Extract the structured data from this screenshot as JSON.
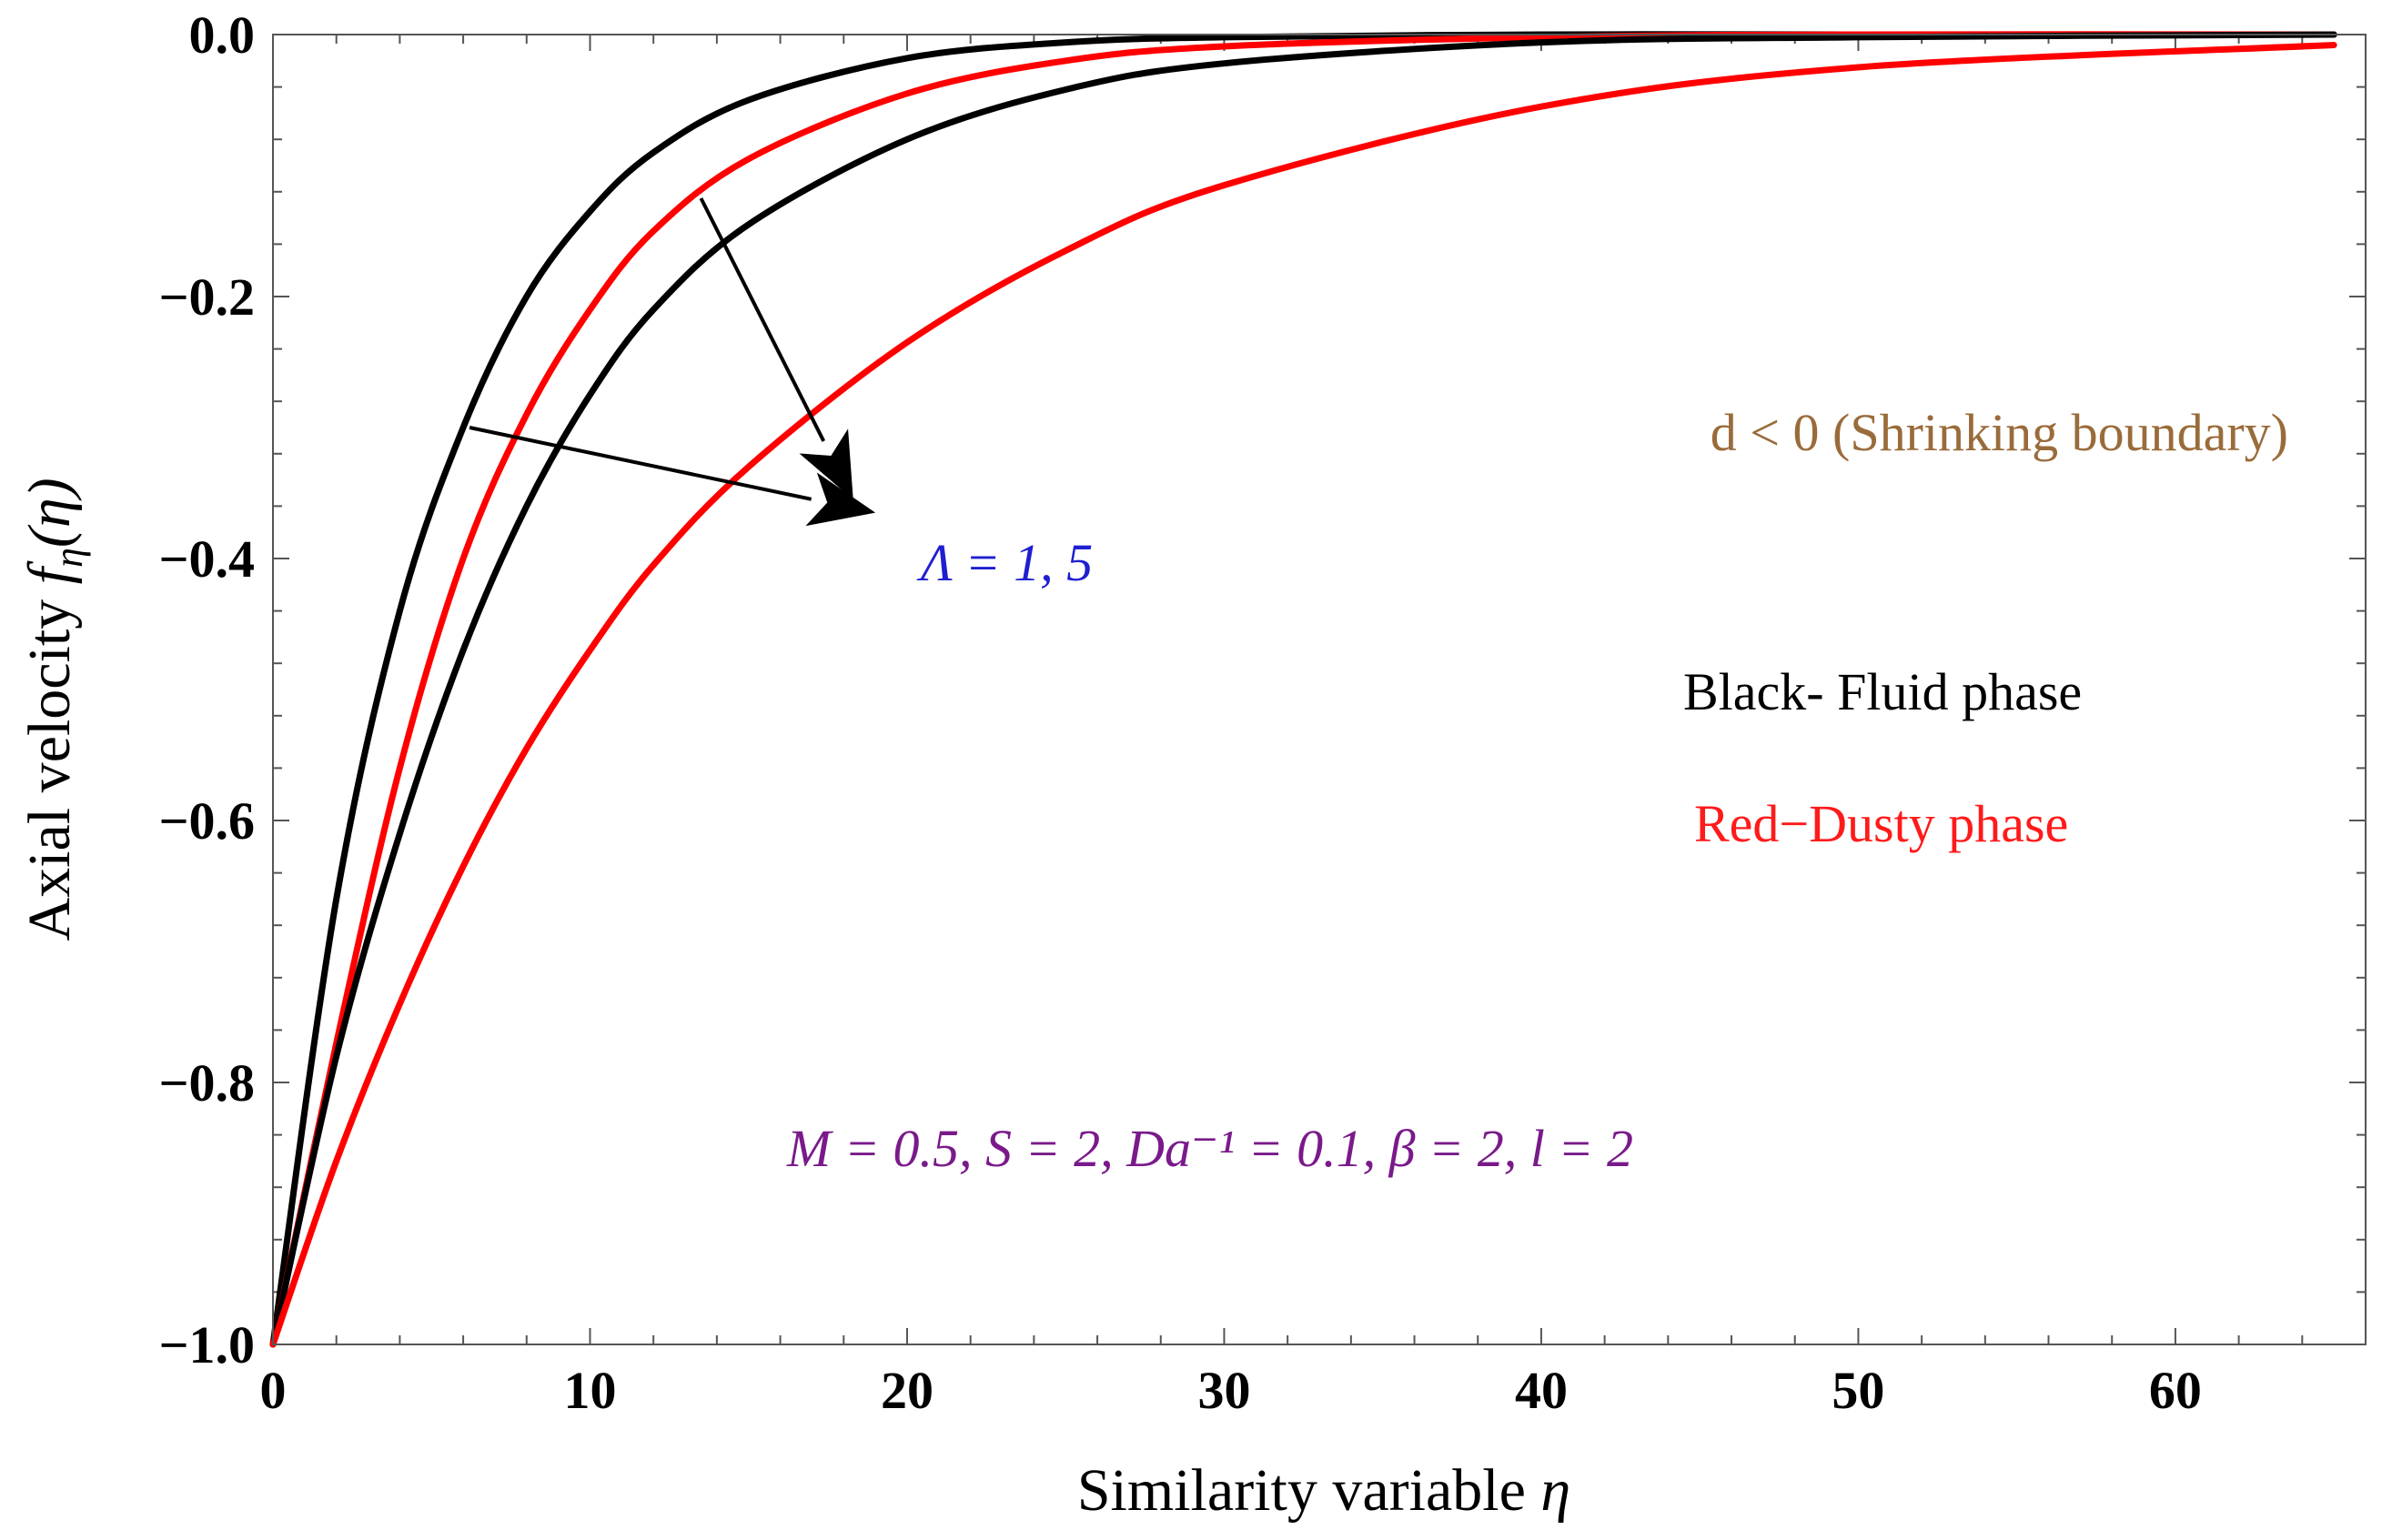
{
  "chart_data": {
    "type": "line",
    "xlabel": "Similarity variable",
    "xlabel_symbol": "η",
    "ylabel": "Axial velocity",
    "ylabel_symbol": "f",
    "ylabel_subscript": "η",
    "ylabel_arg": "(η)",
    "xlim": [
      0,
      66
    ],
    "ylim": [
      -1.0,
      0.0
    ],
    "x_ticks": [
      "0",
      "10",
      "20",
      "30",
      "40",
      "50",
      "60"
    ],
    "y_ticks": [
      "0.0",
      "−0.2",
      "−0.4",
      "−0.6",
      "−0.8",
      "−1.0"
    ],
    "x_tick_values": [
      0,
      10,
      20,
      30,
      40,
      50,
      60
    ],
    "y_tick_values": [
      0.0,
      -0.2,
      -0.4,
      -0.6,
      -0.8,
      -1.0
    ],
    "series": [
      {
        "name": "Fluid phase, Λ = 1",
        "color": "#000000",
        "x": [
          0,
          2,
          4,
          6,
          8,
          10,
          12,
          15,
          20,
          25,
          30,
          40,
          50,
          65
        ],
        "y": [
          -1.0,
          -0.66,
          -0.44,
          -0.3,
          -0.2,
          -0.135,
          -0.09,
          -0.05,
          -0.018,
          -0.006,
          -0.002,
          0.0,
          0.0,
          0.0
        ]
      },
      {
        "name": "Dusty phase, Λ = 1",
        "color": "#ff0000",
        "x": [
          0,
          2,
          4,
          6,
          8,
          10,
          12,
          15,
          20,
          25,
          30,
          40,
          50,
          65
        ],
        "y": [
          -1.0,
          -0.77,
          -0.56,
          -0.4,
          -0.29,
          -0.21,
          -0.15,
          -0.095,
          -0.045,
          -0.02,
          -0.009,
          -0.002,
          0.0,
          0.0
        ]
      },
      {
        "name": "Fluid phase, Λ = 5",
        "color": "#000000",
        "x": [
          0,
          2,
          4,
          6,
          8,
          10,
          12,
          15,
          20,
          25,
          30,
          40,
          50,
          65
        ],
        "y": [
          -1.0,
          -0.78,
          -0.61,
          -0.47,
          -0.36,
          -0.275,
          -0.21,
          -0.145,
          -0.08,
          -0.042,
          -0.022,
          -0.006,
          -0.002,
          0.0
        ]
      },
      {
        "name": "Dusty phase, Λ = 5",
        "color": "#ff0000",
        "x": [
          0,
          2,
          4,
          6,
          8,
          10,
          12,
          15,
          20,
          25,
          30,
          40,
          50,
          65
        ],
        "y": [
          -1.0,
          -0.86,
          -0.74,
          -0.635,
          -0.545,
          -0.47,
          -0.405,
          -0.33,
          -0.235,
          -0.165,
          -0.115,
          -0.055,
          -0.025,
          -0.008
        ]
      }
    ],
    "arrows": [
      {
        "from": [
          6.2,
          -0.3
        ],
        "to": [
          19,
          -0.365
        ],
        "label_target": "lambda"
      },
      {
        "from": [
          13.5,
          -0.125
        ],
        "to": [
          18.3,
          -0.355
        ]
      }
    ],
    "annotations": {
      "boundary_condition": "d < 0 (Shrinking boundary)",
      "lambda_label": "Λ = 1, 5",
      "black_legend": "Black- Fluid phase",
      "red_legend": "Red−Dusty phase",
      "params": "M = 0.5, S = 2, Da⁻¹ = 0.1, β = 2, l = 2"
    }
  }
}
